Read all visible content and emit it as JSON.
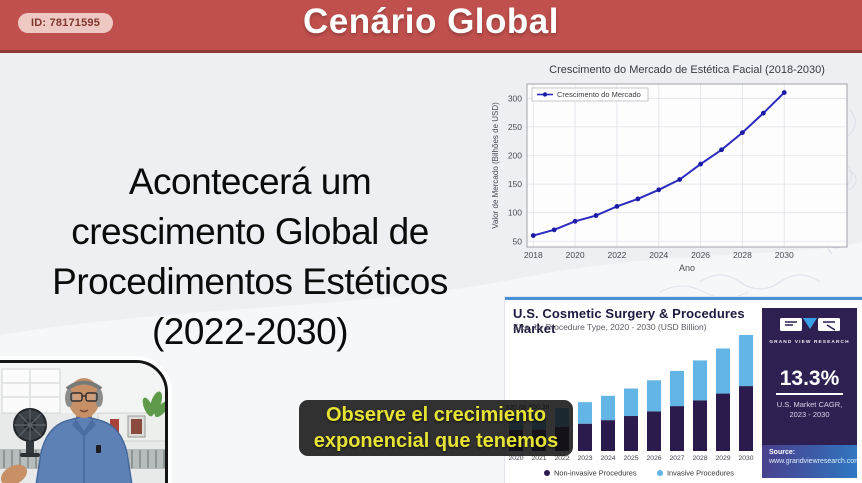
{
  "header": {
    "id_badge": "ID: 78171595",
    "title": "Cenário Global",
    "bar_color": "#c0504d"
  },
  "main_text": "Acontecerá um\ncrescimento Global de\nProcedimentos Estéticos\n(2022-2030)",
  "subtitle_overlay": {
    "line1": "Observe el crecimiento",
    "line2": "exponencial que tenemos",
    "text_color": "#e6e335"
  },
  "chart_data": [
    {
      "type": "line",
      "title": "Crescimento do Mercado de Estética Facial (2018-2030)",
      "legend": [
        "Crescimento do Mercado"
      ],
      "legend_position": "upper left",
      "xlabel": "Ano",
      "ylabel": "Valor de Mercado (Bilhões de USD)",
      "x": [
        2018,
        2019,
        2020,
        2021,
        2022,
        2023,
        2024,
        2025,
        2026,
        2027,
        2028,
        2029,
        2030
      ],
      "values": [
        60,
        70,
        85,
        95,
        111,
        124,
        140,
        158,
        185,
        210,
        240,
        274,
        310
      ],
      "xticks": [
        2018,
        2020,
        2022,
        2024,
        2026,
        2028,
        2030
      ],
      "yticks": [
        50,
        100,
        150,
        200,
        250,
        300
      ],
      "ylim": [
        40,
        325
      ],
      "grid": true,
      "line_color": "#2b2bbf",
      "marker_color": "#1b1ba6"
    },
    {
      "type": "bar",
      "title": "U.S. Cosmetic Surgery & Procedures Market",
      "subtitle": "Size, by Procedure Type, 2020 - 2030 (USD Billion)",
      "categories": [
        "2020",
        "2021",
        "2022",
        "2023",
        "2024",
        "2025",
        "2026",
        "2027",
        "2028",
        "2029",
        "2030"
      ],
      "series": [
        {
          "name": "Non-invasive Procedures",
          "color": "#2b1b4d",
          "values": [
            11.2,
            11.4,
            12.9,
            14.6,
            16.5,
            18.7,
            21.2,
            24.0,
            27.1,
            30.7,
            34.7
          ]
        },
        {
          "name": "Invasive Procedures",
          "color": "#62b5e5",
          "values": [
            8.9,
            9.0,
            10.1,
            11.5,
            13.0,
            14.7,
            16.6,
            18.8,
            21.3,
            24.1,
            27.3
          ]
        }
      ],
      "bar_labels": {
        "2020": "$20.08",
        "2021": "$20.38"
      },
      "ylim": [
        0,
        65
      ],
      "stat": {
        "value": "13.3%",
        "caption": "U.S. Market CAGR,",
        "period": "2023 - 2030"
      },
      "brand": "GRAND VIEW RESEARCH",
      "source_label": "Source:",
      "source_url": "www.grandviewresearch.com",
      "accent_border": "#4a90d9",
      "panel_color": "#2e2152"
    }
  ]
}
